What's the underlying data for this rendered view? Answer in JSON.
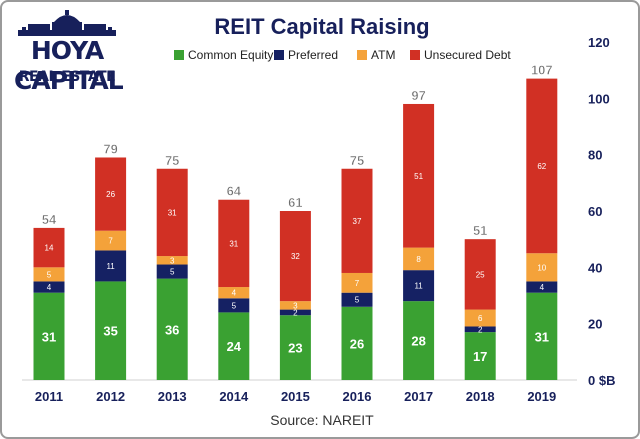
{
  "logo": {
    "line1": "HOYA CAPITAL",
    "line2": "REAL ESTATE",
    "color": "#17205b"
  },
  "source": "Source: NAREIT",
  "colors": {
    "common_equity": "#3aa132",
    "preferred": "#152163",
    "atm": "#f4a23a",
    "unsecured_debt": "#d13024",
    "title": "#17205b"
  },
  "chart_data": {
    "type": "bar",
    "stacked": true,
    "title": "REIT Capital Raising",
    "xlabel": "",
    "ylabel": "",
    "y_unit_label": "$B",
    "ylim": [
      0,
      120
    ],
    "yticks": [
      0,
      20,
      40,
      60,
      80,
      100,
      120
    ],
    "y_axis_side": "right",
    "legend_position": "top",
    "grid": false,
    "categories": [
      "2011",
      "2012",
      "2013",
      "2014",
      "2015",
      "2016",
      "2017",
      "2018",
      "2019"
    ],
    "totals": [
      54,
      79,
      75,
      64,
      61,
      75,
      97,
      51,
      107
    ],
    "series": [
      {
        "name": "Common Equity",
        "key": "common_equity",
        "values": [
          31,
          35,
          36,
          24,
          23,
          26,
          28,
          17,
          31
        ]
      },
      {
        "name": "Preferred",
        "key": "preferred",
        "values": [
          4,
          11,
          5,
          5,
          2,
          5,
          11,
          2,
          4
        ]
      },
      {
        "name": "ATM",
        "key": "atm",
        "values": [
          5,
          7,
          3,
          4,
          3,
          7,
          8,
          6,
          10
        ]
      },
      {
        "name": "Unsecured Debt",
        "key": "unsecured_debt",
        "values": [
          14,
          26,
          31,
          31,
          32,
          37,
          51,
          25,
          62
        ]
      }
    ]
  }
}
